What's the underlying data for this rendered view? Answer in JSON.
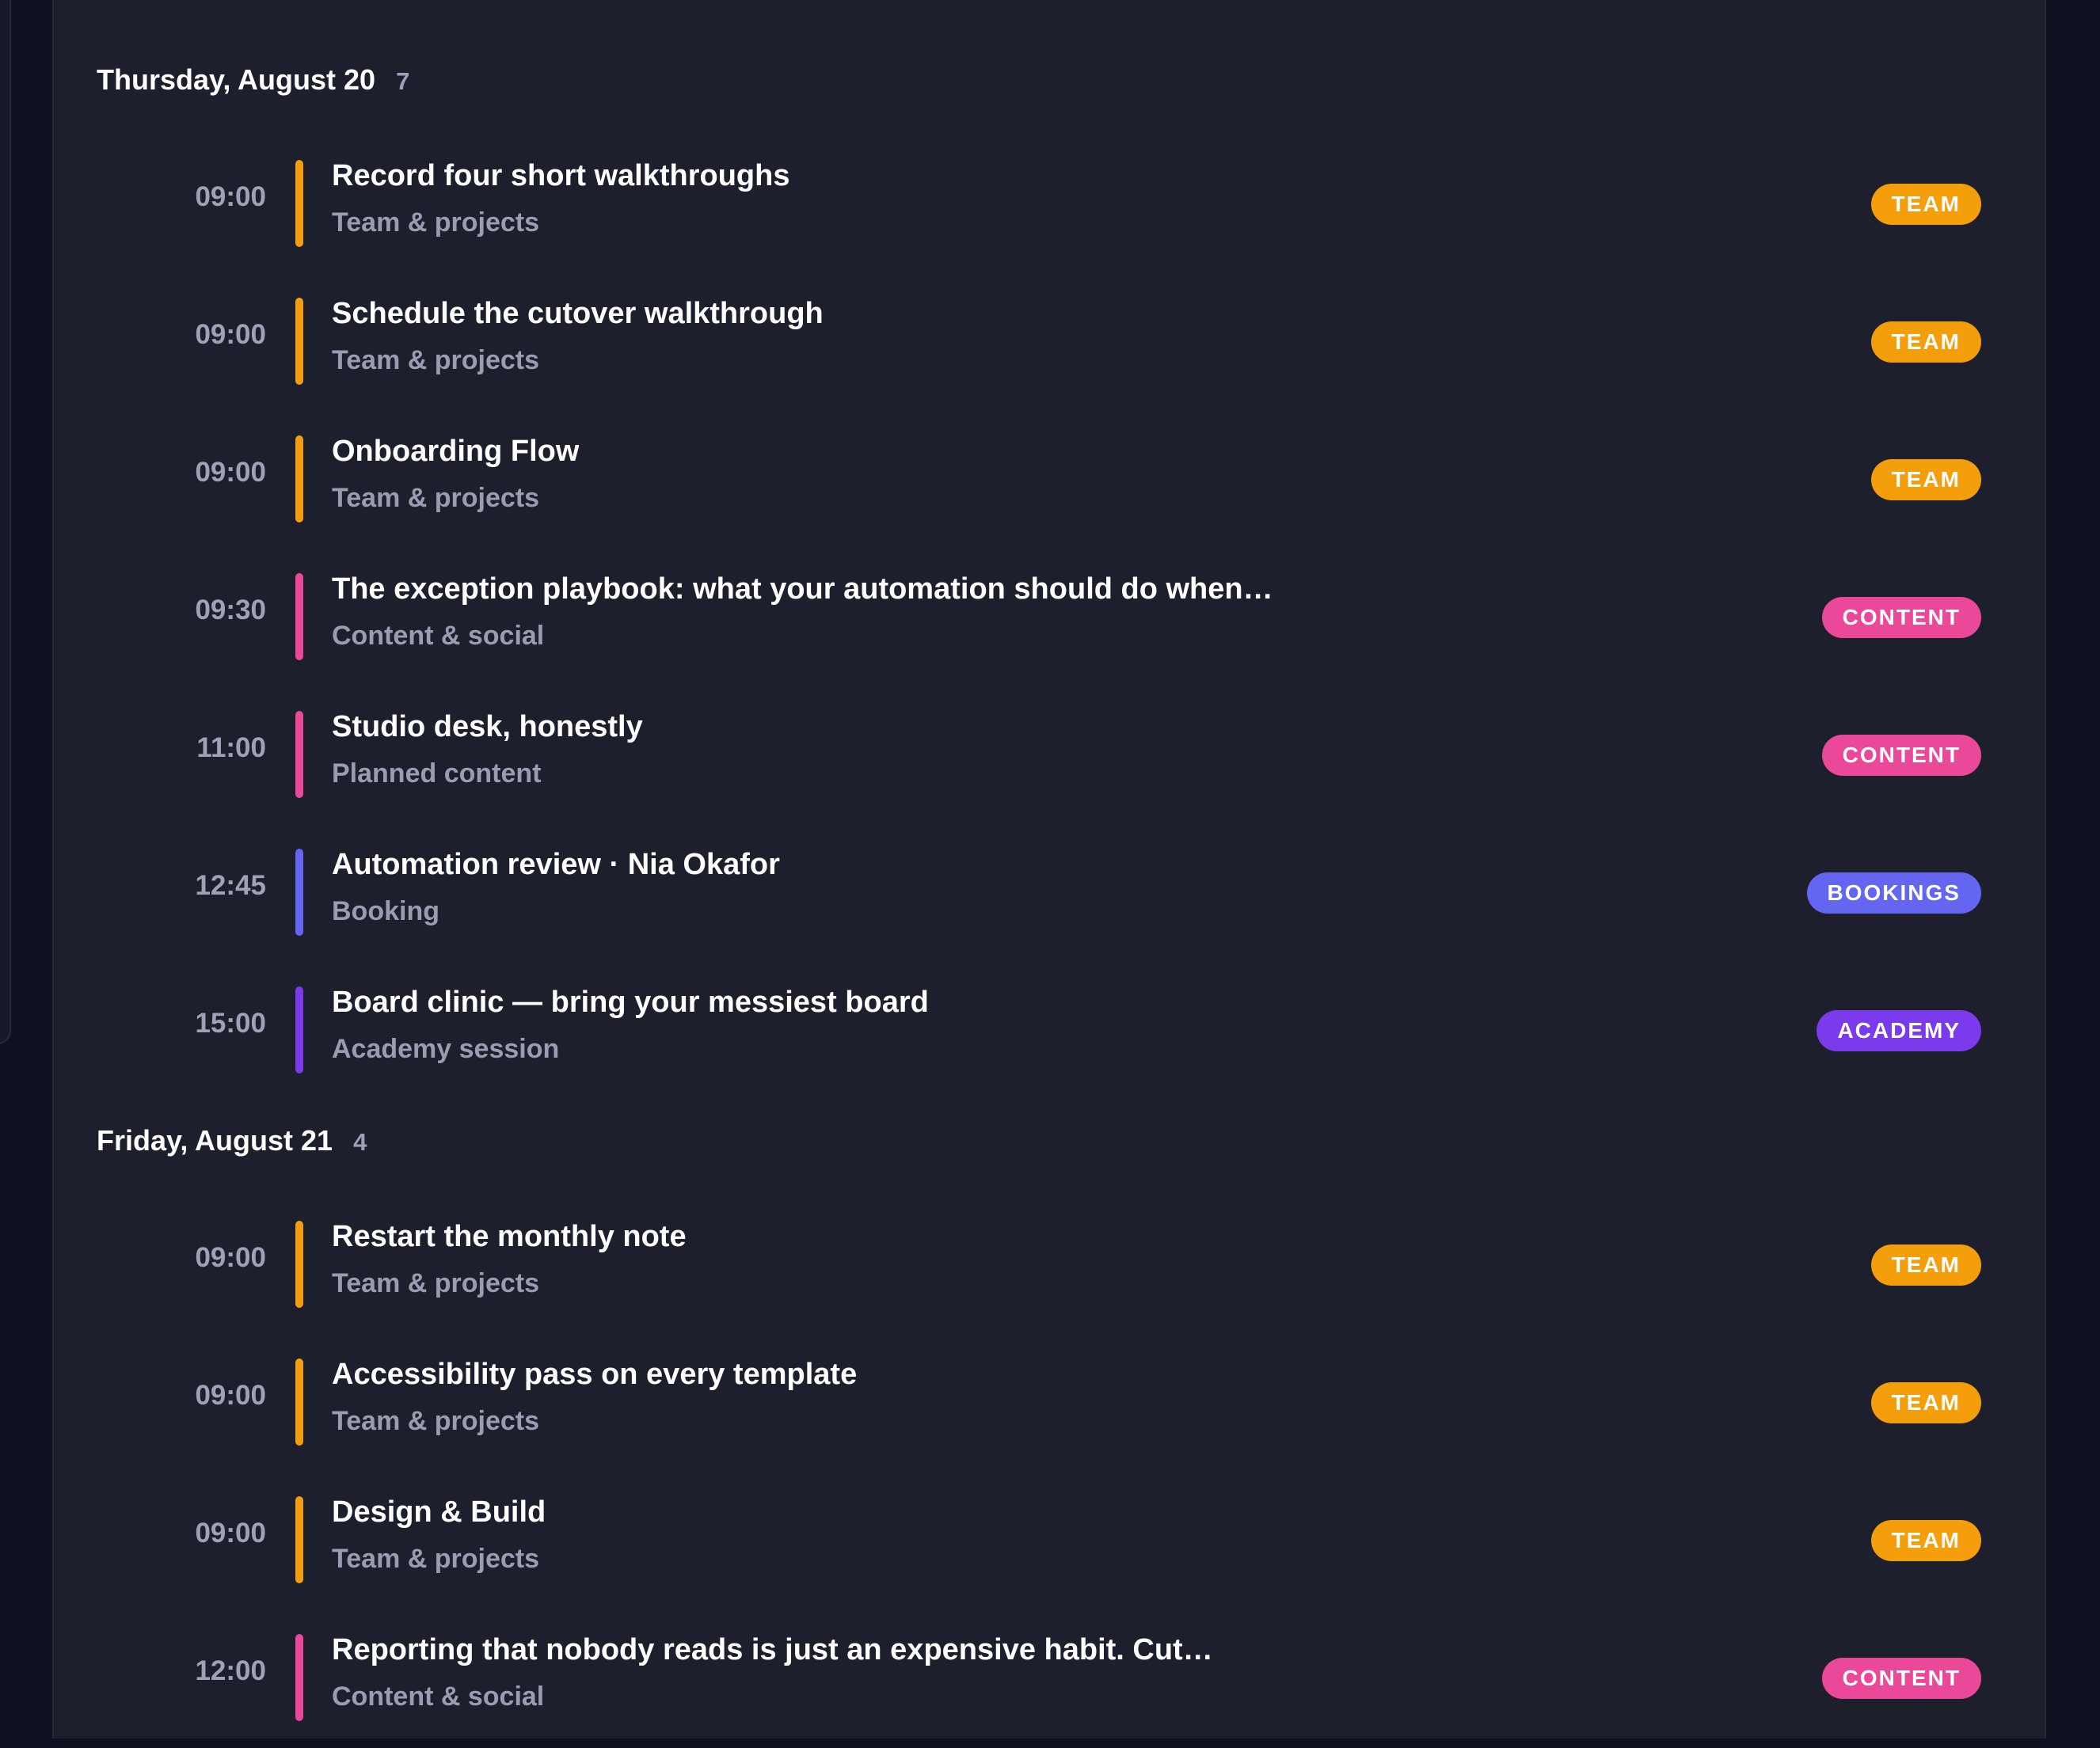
{
  "colors": {
    "team": "#f59e0b",
    "content": "#ec4899",
    "bookings": "#6366f1",
    "academy": "#7c3aed"
  },
  "days": [
    {
      "title": "Thursday, August 20",
      "count": "7",
      "events": [
        {
          "time": "09:00",
          "title": "Record four short walkthroughs",
          "subtitle": "Team & projects",
          "badge": "TEAM",
          "category": "team"
        },
        {
          "time": "09:00",
          "title": "Schedule the cutover walkthrough",
          "subtitle": "Team & projects",
          "badge": "TEAM",
          "category": "team"
        },
        {
          "time": "09:00",
          "title": "Onboarding Flow",
          "subtitle": "Team & projects",
          "badge": "TEAM",
          "category": "team"
        },
        {
          "time": "09:30",
          "title": "The exception playbook: what your automation should do when…",
          "subtitle": "Content & social",
          "badge": "CONTENT",
          "category": "content"
        },
        {
          "time": "11:00",
          "title": "Studio desk, honestly",
          "subtitle": "Planned content",
          "badge": "CONTENT",
          "category": "content"
        },
        {
          "time": "12:45",
          "title": "Automation review · Nia Okafor",
          "subtitle": "Booking",
          "badge": "BOOKINGS",
          "category": "bookings"
        },
        {
          "time": "15:00",
          "title": "Board clinic — bring your messiest board",
          "subtitle": "Academy session",
          "badge": "ACADEMY",
          "category": "academy"
        }
      ]
    },
    {
      "title": "Friday, August 21",
      "count": "4",
      "events": [
        {
          "time": "09:00",
          "title": "Restart the monthly note",
          "subtitle": "Team & projects",
          "badge": "TEAM",
          "category": "team"
        },
        {
          "time": "09:00",
          "title": "Accessibility pass on every template",
          "subtitle": "Team & projects",
          "badge": "TEAM",
          "category": "team"
        },
        {
          "time": "09:00",
          "title": "Design & Build",
          "subtitle": "Team & projects",
          "badge": "TEAM",
          "category": "team"
        },
        {
          "time": "12:00",
          "title": "Reporting that nobody reads is just an expensive habit. Cut…",
          "subtitle": "Content & social",
          "badge": "CONTENT",
          "category": "content"
        }
      ]
    }
  ]
}
